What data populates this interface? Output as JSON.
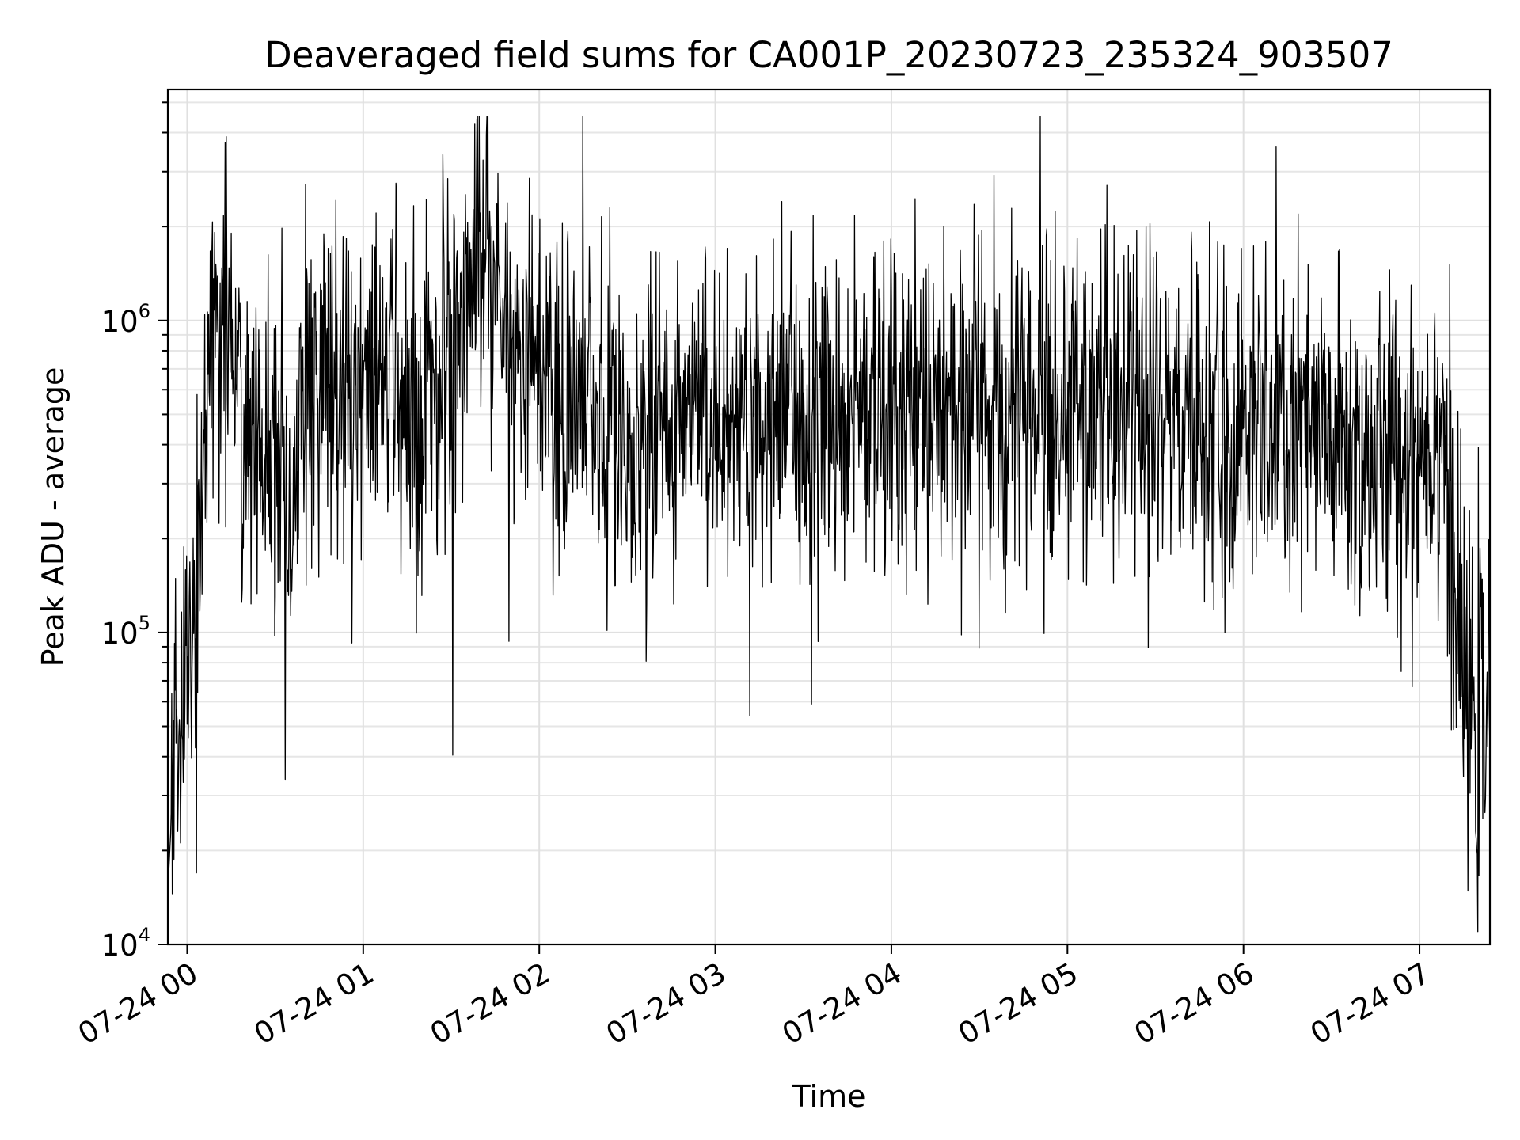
{
  "chart_data": {
    "type": "line",
    "title": "Deaveraged field sums for CA001P_20230723_235324_903507",
    "xlabel": "Time",
    "ylabel": "Peak ADU - average",
    "yscale": "log",
    "grid": true,
    "x_tick_labels": [
      "07-24 00",
      "07-24 01",
      "07-24 02",
      "07-24 03",
      "07-24 04",
      "07-24 05",
      "07-24 06",
      "07-24 07"
    ],
    "x_tick_hours": [
      0,
      1,
      2,
      3,
      4,
      5,
      6,
      7
    ],
    "xlim": [
      "2023-07-23 23:53:24",
      "2023-07-24 07:24:00"
    ],
    "y_ticks": [
      {
        "base": "10",
        "exp": "4",
        "value": 10000
      },
      {
        "base": "10",
        "exp": "5",
        "value": 100000
      },
      {
        "base": "10",
        "exp": "6",
        "value": 1000000
      }
    ],
    "ylim": [
      10000,
      5500000
    ],
    "series": [
      {
        "color": "#000000",
        "x": [
          "2023-07-23 23:53:24",
          "2023-07-23 23:55:00",
          "2023-07-23 23:57:00",
          "2023-07-23 23:59:00",
          "2023-07-24 00:01:00",
          "2023-07-24 00:03:00",
          "2023-07-24 00:05:00",
          "2023-07-24 00:07:00",
          "2023-07-24 00:09:00",
          "2023-07-24 00:11:00",
          "2023-07-24 00:13:00",
          "2023-07-24 00:15:00",
          "2023-07-24 00:17:00",
          "2023-07-24 00:20:00",
          "2023-07-24 00:25:00",
          "2023-07-24 00:30:00",
          "2023-07-24 00:35:00",
          "2023-07-24 00:40:00",
          "2023-07-24 00:45:00",
          "2023-07-24 00:50:00",
          "2023-07-24 00:55:00",
          "2023-07-24 01:00:00",
          "2023-07-24 01:05:00",
          "2023-07-24 01:10:00",
          "2023-07-24 01:15:00",
          "2023-07-24 01:20:00",
          "2023-07-24 01:25:00",
          "2023-07-24 01:30:00",
          "2023-07-24 01:35:00",
          "2023-07-24 01:40:00",
          "2023-07-24 01:45:00",
          "2023-07-24 01:50:00",
          "2023-07-24 01:55:00",
          "2023-07-24 02:00:00",
          "2023-07-24 02:10:00",
          "2023-07-24 02:20:00",
          "2023-07-24 02:30:00",
          "2023-07-24 02:40:00",
          "2023-07-24 02:50:00",
          "2023-07-24 03:00:00",
          "2023-07-24 03:15:00",
          "2023-07-24 03:30:00",
          "2023-07-24 03:45:00",
          "2023-07-24 04:00:00",
          "2023-07-24 04:15:00",
          "2023-07-24 04:30:00",
          "2023-07-24 04:45:00",
          "2023-07-24 05:00:00",
          "2023-07-24 05:15:00",
          "2023-07-24 05:30:00",
          "2023-07-24 05:45:00",
          "2023-07-24 06:00:00",
          "2023-07-24 06:15:00",
          "2023-07-24 06:30:00",
          "2023-07-24 06:45:00",
          "2023-07-24 07:00:00",
          "2023-07-24 07:04:00",
          "2023-07-24 07:08:00",
          "2023-07-24 07:12:00",
          "2023-07-24 07:16:00",
          "2023-07-24 07:20:00",
          "2023-07-24 07:24:00"
        ],
        "y": [
          15000,
          30000,
          60000,
          75000,
          90000,
          130000,
          280000,
          650000,
          1000000,
          1100000,
          800000,
          1200000,
          700000,
          450000,
          380000,
          300000,
          180000,
          500000,
          800000,
          700000,
          600000,
          650000,
          500000,
          700000,
          600000,
          500000,
          700000,
          800000,
          1300000,
          2000000,
          1500000,
          800000,
          700000,
          650000,
          550000,
          450000,
          400000,
          450000,
          500000,
          500000,
          520000,
          480000,
          500000,
          550000,
          560000,
          530000,
          520000,
          540000,
          500000,
          480000,
          460000,
          450000,
          420000,
          400000,
          350000,
          400000,
          450000,
          500000,
          120000,
          60000,
          50000,
          60000
        ],
        "noise_sigma_decades": 0.28,
        "noise_samples": 2400
      }
    ]
  }
}
